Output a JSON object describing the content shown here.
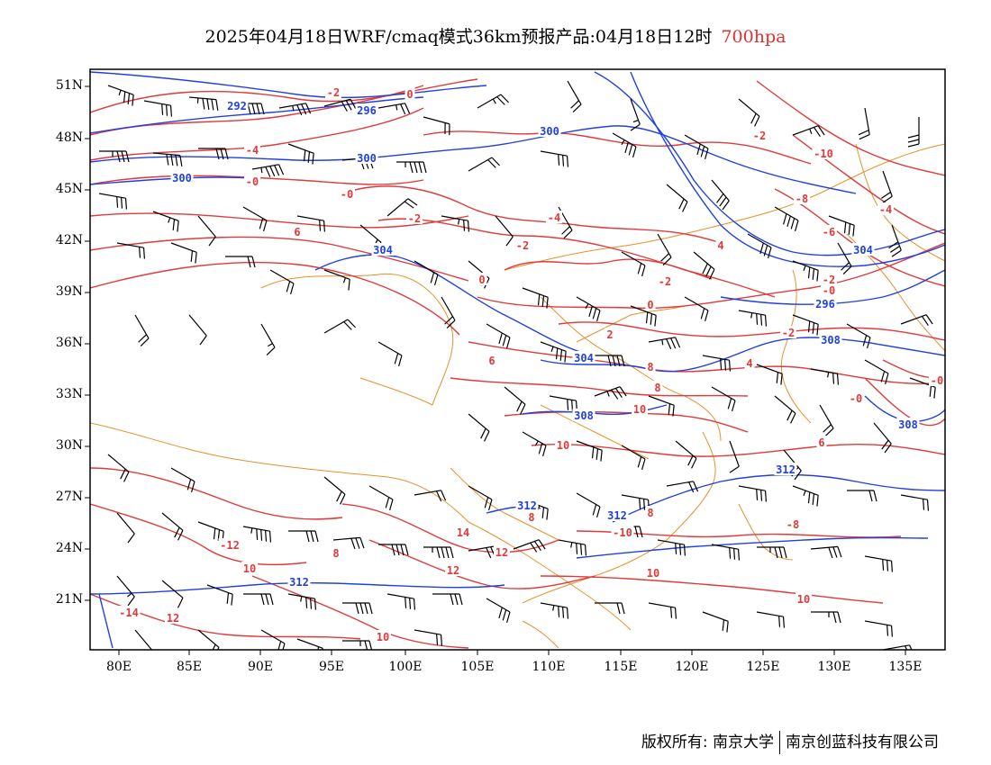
{
  "title": {
    "main": "2025年04月18日WRF/cmaq模式36km预报产品:04月18日12时",
    "level": "700hpa"
  },
  "axes": {
    "lat_labels": [
      "51N",
      "48N",
      "45N",
      "42N",
      "39N",
      "36N",
      "33N",
      "30N",
      "27N",
      "24N",
      "21N"
    ],
    "lon_labels": [
      "80E",
      "85E",
      "90E",
      "95E",
      "100E",
      "105E",
      "110E",
      "115E",
      "120E",
      "125E",
      "130E",
      "135E"
    ]
  },
  "contours": {
    "height_labels": [
      "292",
      "296",
      "300",
      "300",
      "300",
      "304",
      "304",
      "296",
      "304",
      "308",
      "308",
      "308",
      "312",
      "312",
      "312",
      "312"
    ],
    "temp_labels": [
      "-2",
      "0",
      "-4",
      "-0",
      "-0",
      "-2",
      "-4",
      "-2",
      "6",
      "0",
      "-2",
      "-2",
      "-10",
      "-8",
      "-6",
      "-4",
      "4",
      "-2",
      "-0",
      "-0",
      "2",
      "-2",
      "8",
      "6",
      "8",
      "10",
      "10",
      "4",
      "6",
      "-0",
      "0",
      "10",
      "8",
      "8",
      "-8",
      "14",
      "12",
      "12",
      "-12",
      "10",
      "-14",
      "12",
      "-10",
      "10",
      "10",
      "8"
    ]
  },
  "colors": {
    "height_contour": "#2040e0",
    "temperature_contour": "#e03a3a",
    "border": "#e8902a",
    "wind_barb": "#000000",
    "level_text": "#e03030"
  },
  "footer": {
    "left": "版权所有: 南京大学",
    "right": "南京创蓝科技有限公司"
  }
}
